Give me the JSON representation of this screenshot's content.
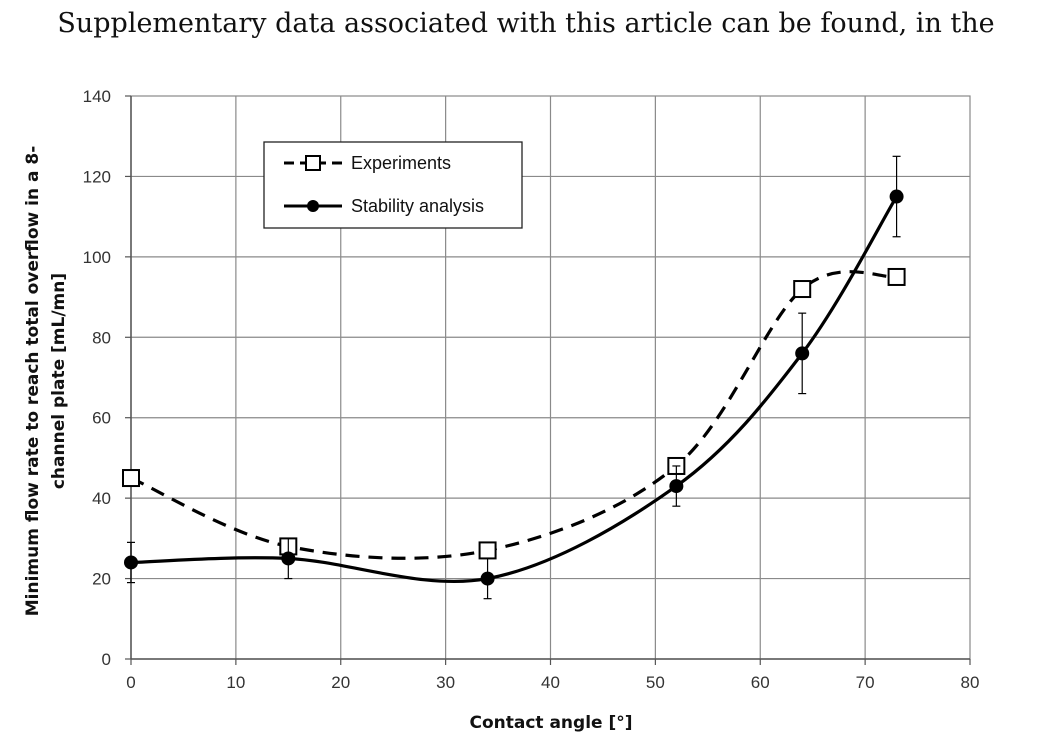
{
  "header": {
    "text": "Supplementary data associated with this article can be found, in the"
  },
  "chart_data": {
    "type": "line",
    "title": "",
    "xlabel": "Contact angle [°]",
    "ylabel_line1": "Minimum flow rate to reach total overflow in a 8-",
    "ylabel_line2": "channel plate [mL/mn]",
    "xlim": [
      0,
      80
    ],
    "ylim": [
      0,
      140
    ],
    "xticks": [
      "0",
      "10",
      "20",
      "30",
      "40",
      "50",
      "60",
      "70",
      "80"
    ],
    "yticks": [
      "0",
      "20",
      "40",
      "60",
      "80",
      "100",
      "120",
      "140"
    ],
    "grid": true,
    "legend_position": "top-left",
    "series": [
      {
        "name": "Experiments",
        "style": "dashed",
        "marker": "open-square",
        "x": [
          0,
          15,
          34,
          52,
          64,
          73
        ],
        "y": [
          45,
          28,
          27,
          48,
          92,
          95
        ]
      },
      {
        "name": "Stability analysis",
        "style": "solid",
        "marker": "filled-circle",
        "x": [
          0,
          15,
          34,
          52,
          64,
          73
        ],
        "y": [
          24,
          25,
          20,
          43,
          76,
          115
        ],
        "error": [
          5,
          5,
          5,
          5,
          10,
          10
        ]
      }
    ]
  }
}
